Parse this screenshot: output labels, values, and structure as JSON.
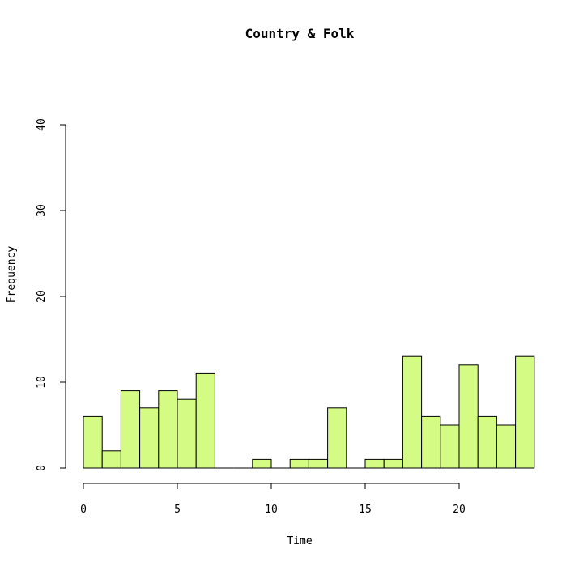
{
  "chart_data": {
    "type": "bar",
    "title": "Country & Folk",
    "xlabel": "Time",
    "ylabel": "Frequency",
    "bin_width": 1,
    "x_bins": [
      0,
      1,
      2,
      3,
      4,
      5,
      6,
      7,
      8,
      9,
      10,
      11,
      12,
      13,
      14,
      15,
      16,
      17,
      18,
      19,
      20,
      21,
      22,
      23
    ],
    "values": [
      6,
      2,
      9,
      7,
      9,
      8,
      11,
      0,
      0,
      1,
      0,
      1,
      1,
      7,
      0,
      1,
      1,
      13,
      6,
      5,
      12,
      6,
      5,
      13
    ],
    "xlim": [
      0,
      24
    ],
    "ylim": [
      0,
      40
    ],
    "x_ticks": [
      "0",
      "5",
      "10",
      "15",
      "20"
    ],
    "y_ticks": [
      "0",
      "10",
      "20",
      "30",
      "40"
    ],
    "grid": false,
    "bar_fill": "#d4fc84",
    "bar_stroke": "#000000"
  }
}
